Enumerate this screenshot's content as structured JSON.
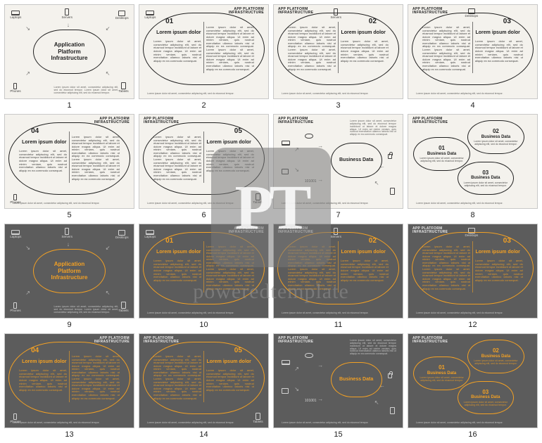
{
  "lorem_short": "Lorem ipsum dolor sit amet, consectetur adipiscing elit, sed do eiusmod tempor incididunt ut labore et dolore magna aliqua. Ut enim ad minim veniam, quis nostrud exercitation ullamco laboris nisi ut aliquip ex ea commodo consequat.",
  "lorem_tiny": "Lorem ipsum dolor sit amet, consectetur adipiscing elit, sed do eiusmod tempor.",
  "header_label": "APP PLATFORM\nINFRASTRUCTURE",
  "center_title": "Application\nPlatform\nInfrastructure",
  "item_title": "Lorem ipsum dolor",
  "biz_title": "Business Data",
  "devices": {
    "laptops": "Laptops",
    "servers": "Servers",
    "desktops": "Desktops",
    "phones": "Phones",
    "tablets": "Tablets",
    "binary": "101001"
  },
  "watermark": {
    "letters": "PT",
    "text": "poweredtemplate"
  },
  "colors": {
    "light_bg": "#f4f2ed",
    "dark_bg": "#5c5c5c",
    "light_stroke": "#222222",
    "dark_stroke": "#f2a024",
    "light_text": "#222222",
    "dark_text": "#e8e8e8"
  },
  "slides": [
    {
      "n": 1,
      "theme": "light",
      "layout": "hub"
    },
    {
      "n": 2,
      "theme": "light",
      "layout": "big",
      "side": "left",
      "num": "01",
      "corner_dev": "laptops"
    },
    {
      "n": 3,
      "theme": "light",
      "layout": "big",
      "side": "right",
      "num": "02",
      "corner_dev": "servers"
    },
    {
      "n": 4,
      "theme": "light",
      "layout": "big",
      "side": "right",
      "num": "03",
      "corner_dev": "desktops"
    },
    {
      "n": 5,
      "theme": "light",
      "layout": "big",
      "side": "left",
      "num": "04",
      "corner_dev": "phones",
      "corner_pos": "bl"
    },
    {
      "n": 6,
      "theme": "light",
      "layout": "big",
      "side": "right",
      "num": "05",
      "corner_dev": "tablets",
      "corner_pos": "br"
    },
    {
      "n": 7,
      "theme": "light",
      "layout": "biz"
    },
    {
      "n": 8,
      "theme": "light",
      "layout": "tri"
    },
    {
      "n": 9,
      "theme": "dark",
      "layout": "hub"
    },
    {
      "n": 10,
      "theme": "dark",
      "layout": "big",
      "side": "left",
      "num": "01",
      "corner_dev": "laptops"
    },
    {
      "n": 11,
      "theme": "dark",
      "layout": "big",
      "side": "right",
      "num": "02",
      "corner_dev": "servers"
    },
    {
      "n": 12,
      "theme": "dark",
      "layout": "big",
      "side": "right",
      "num": "03",
      "corner_dev": "desktops"
    },
    {
      "n": 13,
      "theme": "dark",
      "layout": "big",
      "side": "left",
      "num": "04",
      "corner_dev": "phones",
      "corner_pos": "bl"
    },
    {
      "n": 14,
      "theme": "dark",
      "layout": "big",
      "side": "right",
      "num": "05",
      "corner_dev": "tablets",
      "corner_pos": "br"
    },
    {
      "n": 15,
      "theme": "dark",
      "layout": "biz"
    },
    {
      "n": 16,
      "theme": "dark",
      "layout": "tri"
    }
  ]
}
